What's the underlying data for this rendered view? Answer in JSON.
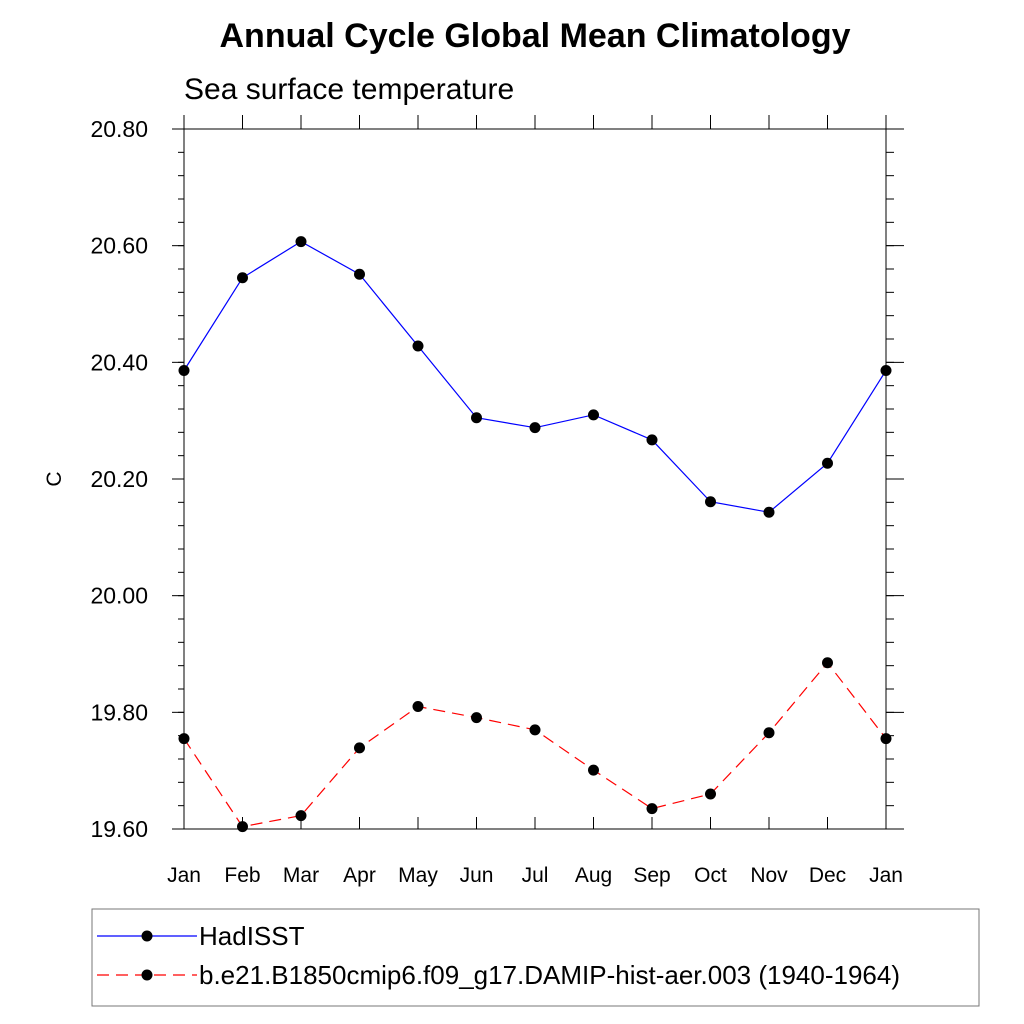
{
  "chart_data": {
    "type": "line",
    "title": "Annual Cycle Global Mean Climatology",
    "subtitle": "Sea surface temperature",
    "ylabel": "C",
    "xlabel": "",
    "ylim": [
      19.6,
      20.8
    ],
    "yticks": [
      "20.80",
      "20.60",
      "20.40",
      "20.20",
      "20.00",
      "19.80",
      "19.60"
    ],
    "ytick_values": [
      20.8,
      20.6,
      20.4,
      20.2,
      20.0,
      19.8,
      19.6
    ],
    "categories": [
      "Jan",
      "Feb",
      "Mar",
      "Apr",
      "May",
      "Jun",
      "Jul",
      "Aug",
      "Sep",
      "Oct",
      "Nov",
      "Dec",
      "Jan"
    ],
    "series": [
      {
        "name": "HadISST",
        "color": "#0000ff",
        "dash": "solid",
        "values": [
          20.386,
          20.545,
          20.607,
          20.551,
          20.428,
          20.305,
          20.288,
          20.31,
          20.267,
          20.161,
          20.143,
          20.227,
          20.386
        ]
      },
      {
        "name": "b.e21.B1850cmip6.f09_g17.DAMIP-hist-aer.003 (1940-1964)",
        "color": "#ff0000",
        "dash": "dashed",
        "values": [
          19.755,
          19.604,
          19.623,
          19.739,
          19.81,
          19.791,
          19.77,
          19.701,
          19.635,
          19.66,
          19.765,
          19.885,
          19.755
        ]
      }
    ],
    "legend_position": "bottom",
    "grid": false
  }
}
